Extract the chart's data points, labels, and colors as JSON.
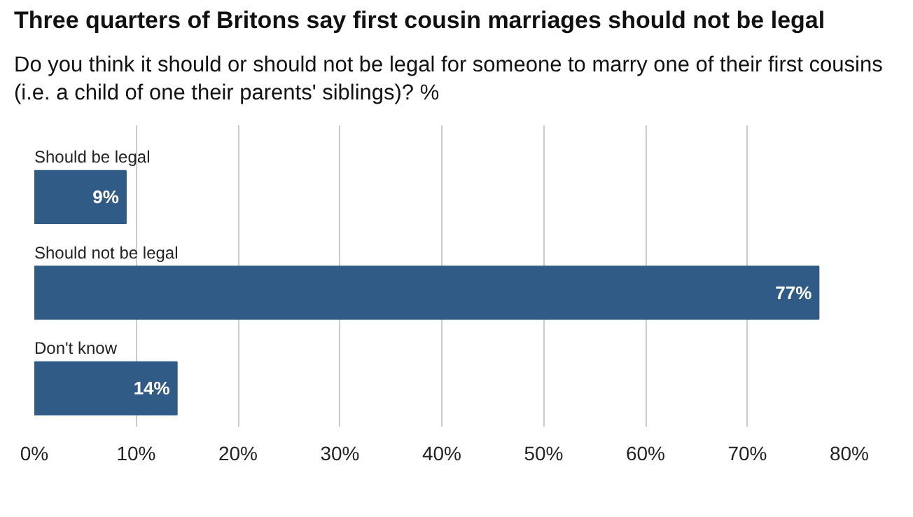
{
  "chart_data": {
    "type": "bar",
    "orientation": "horizontal",
    "title": "Three quarters of Britons say first cousin marriages should not be legal",
    "subtitle": "Do you think it should or should not be legal for someone to marry one of their first cousins (i.e. a child of one their parents' siblings)? %",
    "categories": [
      "Should be legal",
      "Should not be legal",
      "Don't know"
    ],
    "values": [
      9,
      77,
      14
    ],
    "value_labels": [
      "9%",
      "77%",
      "14%"
    ],
    "color": "#2f5b86",
    "xlim": [
      0,
      80
    ],
    "xticks": [
      {
        "value": 0,
        "label": "0%"
      },
      {
        "value": 10,
        "label": "10%"
      },
      {
        "value": 20,
        "label": "20%"
      },
      {
        "value": 30,
        "label": "30%"
      },
      {
        "value": 40,
        "label": "40%"
      },
      {
        "value": 50,
        "label": "50%"
      },
      {
        "value": 60,
        "label": "60%"
      },
      {
        "value": 70,
        "label": "70%"
      },
      {
        "value": 80,
        "label": "80%"
      }
    ],
    "grid": "x"
  }
}
